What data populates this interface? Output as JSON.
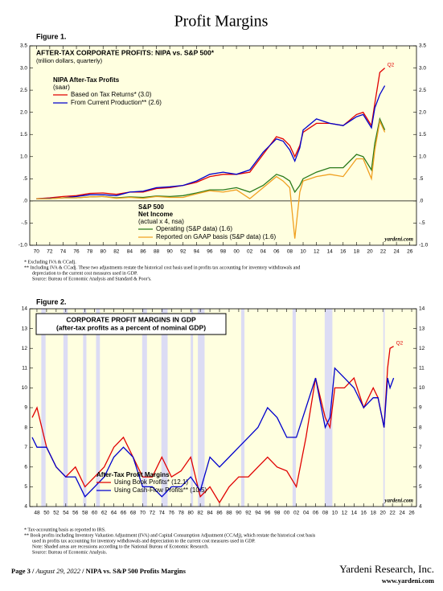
{
  "header": {
    "title": "Profit Margins"
  },
  "chart_data": [
    {
      "type": "line",
      "figure": "Figure 1.",
      "title": "AFTER-TAX CORPORATE PROFITS: NIPA vs. S&P 500*",
      "subtitle": "(trillion dollars, quarterly)",
      "legend_groups": [
        [
          "NIPA After-Tax Profits",
          "(saar)"
        ],
        [
          "S&P 500",
          "Net Income",
          "(actual x 4, nsa)"
        ]
      ],
      "annotation": "Q2",
      "watermark": "yardeni.com",
      "background": "#ffffe0",
      "x": [
        1970,
        1972,
        1974,
        1976,
        1978,
        1980,
        1982,
        1984,
        1986,
        1988,
        1990,
        1992,
        1994,
        1996,
        1998,
        2000,
        2002,
        2004,
        2006,
        2007,
        2008,
        2008.75,
        2009.5,
        2010,
        2012,
        2014,
        2016,
        2018,
        2019,
        2020.25,
        2020.75,
        2021.5,
        2022.25
      ],
      "series": [
        {
          "name": "Based on Tax Returns* (3.0)",
          "color": "#e00000",
          "values": [
            0.05,
            0.07,
            0.1,
            0.12,
            0.17,
            0.18,
            0.15,
            0.2,
            0.2,
            0.28,
            0.3,
            0.35,
            0.42,
            0.55,
            0.6,
            0.6,
            0.65,
            1.05,
            1.45,
            1.4,
            1.25,
            1.0,
            1.25,
            1.55,
            1.75,
            1.75,
            1.7,
            1.95,
            2.0,
            1.7,
            2.2,
            2.9,
            3.0
          ]
        },
        {
          "name": "From Current Production** (2.6)",
          "color": "#0000cc",
          "values": [
            0.05,
            0.06,
            0.07,
            0.1,
            0.14,
            0.14,
            0.12,
            0.2,
            0.22,
            0.3,
            0.32,
            0.35,
            0.45,
            0.6,
            0.65,
            0.6,
            0.7,
            1.1,
            1.4,
            1.35,
            1.15,
            0.9,
            1.2,
            1.6,
            1.85,
            1.75,
            1.7,
            1.9,
            1.95,
            1.65,
            2.1,
            2.4,
            2.6
          ]
        },
        {
          "name": "Operating (S&P data) (1.6)",
          "color": "#2a7a1a",
          "values": [
            0.05,
            0.05,
            0.07,
            0.07,
            0.09,
            0.1,
            0.07,
            0.09,
            0.08,
            0.11,
            0.1,
            0.12,
            0.18,
            0.25,
            0.25,
            0.3,
            0.2,
            0.35,
            0.6,
            0.55,
            0.45,
            0.2,
            0.35,
            0.5,
            0.65,
            0.75,
            0.75,
            1.05,
            1.0,
            0.7,
            1.3,
            1.85,
            1.6
          ]
        },
        {
          "name": "Reported on GAAP basis (S&P data) (1.6)",
          "color": "#f0a020",
          "values": [
            0.05,
            0.05,
            0.07,
            0.07,
            0.09,
            0.1,
            0.06,
            0.08,
            0.06,
            0.1,
            0.08,
            0.08,
            0.16,
            0.23,
            0.2,
            0.25,
            0.05,
            0.3,
            0.55,
            0.45,
            0.3,
            -0.85,
            0.2,
            0.45,
            0.55,
            0.6,
            0.55,
            0.95,
            0.95,
            0.5,
            1.15,
            1.8,
            1.55
          ]
        }
      ],
      "xlim": [
        1969,
        2027
      ],
      "xticks": [
        {
          "value": 1970,
          "label": "70"
        },
        {
          "value": 1972,
          "label": "72"
        },
        {
          "value": 1974,
          "label": "74"
        },
        {
          "value": 1976,
          "label": "76"
        },
        {
          "value": 1978,
          "label": "78"
        },
        {
          "value": 1980,
          "label": "80"
        },
        {
          "value": 1982,
          "label": "82"
        },
        {
          "value": 1984,
          "label": "84"
        },
        {
          "value": 1986,
          "label": "86"
        },
        {
          "value": 1988,
          "label": "88"
        },
        {
          "value": 1990,
          "label": "90"
        },
        {
          "value": 1992,
          "label": "92"
        },
        {
          "value": 1994,
          "label": "94"
        },
        {
          "value": 1996,
          "label": "96"
        },
        {
          "value": 1998,
          "label": "98"
        },
        {
          "value": 2000,
          "label": "00"
        },
        {
          "value": 2002,
          "label": "02"
        },
        {
          "value": 2004,
          "label": "04"
        },
        {
          "value": 2006,
          "label": "06"
        },
        {
          "value": 2008,
          "label": "08"
        },
        {
          "value": 2010,
          "label": "10"
        },
        {
          "value": 2012,
          "label": "12"
        },
        {
          "value": 2014,
          "label": "14"
        },
        {
          "value": 2016,
          "label": "16"
        },
        {
          "value": 2018,
          "label": "18"
        },
        {
          "value": 2020,
          "label": "20"
        },
        {
          "value": 2022,
          "label": "22"
        },
        {
          "value": 2024,
          "label": "24"
        },
        {
          "value": 2026,
          "label": "26"
        }
      ],
      "ylim": [
        -1,
        3.5
      ],
      "yticks": [
        {
          "value": -1,
          "label": "-1.0"
        },
        {
          "value": -0.5,
          "label": "-.5"
        },
        {
          "value": 0,
          "label": ".0"
        },
        {
          "value": 0.5,
          "label": ".5"
        },
        {
          "value": 1,
          "label": "1.0"
        },
        1.5,
        {
          "value": 2,
          "label": "2.0"
        },
        2.5,
        {
          "value": 3,
          "label": "3.0"
        },
        3.5
      ],
      "notes": [
        "*   Excluding IVA & CCadj.",
        "**  Including IVA & CCadj. These two adjustments restate the historical cost basis used in profits tax accounting for inventory withdrawals and",
        "depreciation to the current cost measures used in GDP.",
        "Source: Bureau of Economic Analysis and Standard & Poor's."
      ]
    },
    {
      "type": "line",
      "figure": "Figure 2.",
      "title": "CORPORATE PROFIT MARGINS IN GDP",
      "subtitle": "(after-tax profits as a percent of nominal GDP)",
      "legend_groups": [
        [
          "After-Tax Profit Margins"
        ]
      ],
      "annotation": "Q2",
      "watermark": "yardeni.com",
      "background": "#ffffe0",
      "recession_color": "#dcdcf4",
      "recessions": [
        [
          1948.9,
          1949.8
        ],
        [
          1953.5,
          1954.4
        ],
        [
          1957.6,
          1958.3
        ],
        [
          1960.3,
          1961.1
        ],
        [
          1969.9,
          1970.9
        ],
        [
          1973.9,
          1975.2
        ],
        [
          1980,
          1980.5
        ],
        [
          1981.5,
          1982.9
        ],
        [
          1990.5,
          1991.2
        ],
        [
          2001.2,
          2001.9
        ],
        [
          2007.9,
          2009.5
        ],
        [
          2020.1,
          2020.4
        ]
      ],
      "x": [
        1947,
        1948,
        1950,
        1952,
        1954,
        1956,
        1958,
        1960,
        1962,
        1964,
        1966,
        1968,
        1970,
        1972,
        1974,
        1976,
        1978,
        1980,
        1982,
        1984,
        1986,
        1988,
        1990,
        1992,
        1994,
        1996,
        1998,
        2000,
        2002,
        2004,
        2006,
        2008,
        2009,
        2010,
        2012,
        2014,
        2016,
        2018,
        2019,
        2020.25,
        2021,
        2021.5,
        2022.25
      ],
      "series": [
        {
          "name": "Using Book Profits* (12.1)",
          "color": "#e00000",
          "values": [
            8.5,
            9.0,
            7.0,
            6.0,
            5.5,
            6.0,
            5.0,
            5.5,
            6.0,
            7.0,
            7.5,
            6.5,
            5.5,
            5.5,
            6.5,
            5.5,
            5.8,
            6.5,
            4.5,
            5.0,
            4.2,
            5.0,
            5.5,
            5.5,
            6.0,
            6.5,
            6.0,
            5.8,
            5.0,
            7.5,
            10.5,
            8.5,
            8.0,
            10.0,
            10.0,
            10.5,
            9.0,
            10.0,
            9.5,
            8.0,
            11.0,
            12.0,
            12.1
          ]
        },
        {
          "name": "Using Cash-Flow Profits** (10.5)",
          "color": "#0000cc",
          "values": [
            7.5,
            7.0,
            7.0,
            6.0,
            5.5,
            5.5,
            4.5,
            5.0,
            5.5,
            6.5,
            7.0,
            6.5,
            5.0,
            5.0,
            4.5,
            5.0,
            5.0,
            5.5,
            4.8,
            6.5,
            6.0,
            6.5,
            7.0,
            7.5,
            8.0,
            9.0,
            8.5,
            7.5,
            7.5,
            9.0,
            10.5,
            8.0,
            8.5,
            11.0,
            10.5,
            10.0,
            9.0,
            9.5,
            9.5,
            8.0,
            10.5,
            10.0,
            10.5
          ]
        }
      ],
      "xlim": [
        1946.5,
        2027
      ],
      "xticks": [
        {
          "value": 1948,
          "label": "48"
        },
        {
          "value": 1950,
          "label": "50"
        },
        {
          "value": 1952,
          "label": "52"
        },
        {
          "value": 1954,
          "label": "54"
        },
        {
          "value": 1956,
          "label": "56"
        },
        {
          "value": 1958,
          "label": "58"
        },
        {
          "value": 1960,
          "label": "60"
        },
        {
          "value": 1962,
          "label": "62"
        },
        {
          "value": 1964,
          "label": "64"
        },
        {
          "value": 1966,
          "label": "66"
        },
        {
          "value": 1968,
          "label": "68"
        },
        {
          "value": 1970,
          "label": "70"
        },
        {
          "value": 1972,
          "label": "72"
        },
        {
          "value": 1974,
          "label": "74"
        },
        {
          "value": 1976,
          "label": "76"
        },
        {
          "value": 1978,
          "label": "78"
        },
        {
          "value": 1980,
          "label": "80"
        },
        {
          "value": 1982,
          "label": "82"
        },
        {
          "value": 1984,
          "label": "84"
        },
        {
          "value": 1986,
          "label": "86"
        },
        {
          "value": 1988,
          "label": "88"
        },
        {
          "value": 1990,
          "label": "90"
        },
        {
          "value": 1992,
          "label": "92"
        },
        {
          "value": 1994,
          "label": "94"
        },
        {
          "value": 1996,
          "label": "96"
        },
        {
          "value": 1998,
          "label": "98"
        },
        {
          "value": 2000,
          "label": "00"
        },
        {
          "value": 2002,
          "label": "02"
        },
        {
          "value": 2004,
          "label": "04"
        },
        {
          "value": 2006,
          "label": "06"
        },
        {
          "value": 2008,
          "label": "08"
        },
        {
          "value": 2010,
          "label": "10"
        },
        {
          "value": 2012,
          "label": "12"
        },
        {
          "value": 2014,
          "label": "14"
        },
        {
          "value": 2016,
          "label": "16"
        },
        {
          "value": 2018,
          "label": "18"
        },
        {
          "value": 2020,
          "label": "20"
        },
        {
          "value": 2022,
          "label": "22"
        },
        {
          "value": 2024,
          "label": "24"
        },
        {
          "value": 2026,
          "label": "26"
        }
      ],
      "ylim": [
        4,
        14
      ],
      "yticks": [
        4,
        5,
        6,
        7,
        8,
        9,
        10,
        11,
        12,
        13,
        14
      ],
      "notes": [
        "*   Tax-accounting basis as reported to IRS.",
        "**  Book profits including Inventory Valuation Adjustment (IVA) and Capital Consumption Adjustment (CCAdj), which restate the historical cost basis",
        "used in profits tax accounting for inventory withdrawals and depreciation to the current cost measures used in GDP.",
        "Note: Shaded areas are recessions according to the National Bureau of Economic Research.",
        "Source: Bureau of Economic Analysis."
      ]
    }
  ],
  "footer": {
    "left": [
      "Page 3 /",
      "August 29, 2022",
      "/  NIPA vs. S&P 500 Profits Margins"
    ],
    "company": "Yardeni Research, Inc.",
    "url": "www.yardeni.com"
  }
}
